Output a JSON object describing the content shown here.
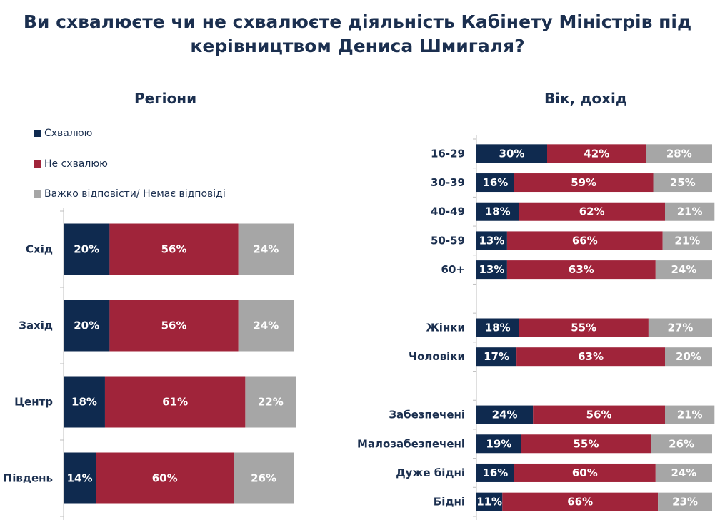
{
  "title": "Ви схвалюєте чи не схвалюєте діяльність Кабінету Міністрів під керівництвом Дениса Шмигаля?",
  "colors": {
    "approve": "#0f2a4f",
    "disapprove": "#a0243a",
    "hard": "#a6a6a6"
  },
  "chart_data": [
    {
      "type": "bar",
      "stacked": true,
      "orientation": "horizontal",
      "title": "Регіони",
      "legend": [
        "Схвалюю",
        "Не схвалюю",
        "Важко відповісти/ Немає відповіді"
      ],
      "legend_placement": "top-left",
      "categories": [
        "Схід",
        "Захід",
        "Центр",
        "Південь"
      ],
      "series": [
        {
          "name": "Схвалюю",
          "values": [
            20,
            20,
            18,
            14
          ]
        },
        {
          "name": "Не схвалюю",
          "values": [
            56,
            56,
            61,
            60
          ]
        },
        {
          "name": "Важко відповісти/ Немає відповіді",
          "values": [
            24,
            24,
            22,
            26
          ]
        }
      ]
    },
    {
      "type": "bar",
      "stacked": true,
      "orientation": "horizontal",
      "title": "Вік, дохід",
      "categories": [
        "16-29",
        "30-39",
        "40-49",
        "50-59",
        "60+",
        "",
        "Жінки",
        "Чоловіки",
        "",
        "Забезпечені",
        "Малозабезпечені",
        "Дуже бідні",
        "Бідні"
      ],
      "series": [
        {
          "name": "Схвалюю",
          "values": [
            30,
            16,
            18,
            13,
            13,
            null,
            18,
            17,
            null,
            24,
            19,
            16,
            11
          ]
        },
        {
          "name": "Не схвалюю",
          "values": [
            42,
            59,
            62,
            66,
            63,
            null,
            55,
            63,
            null,
            56,
            55,
            60,
            66
          ]
        },
        {
          "name": "Важко відповісти/ Немає відповіді",
          "values": [
            28,
            25,
            21,
            21,
            24,
            null,
            27,
            20,
            null,
            21,
            26,
            24,
            23
          ]
        }
      ]
    }
  ]
}
